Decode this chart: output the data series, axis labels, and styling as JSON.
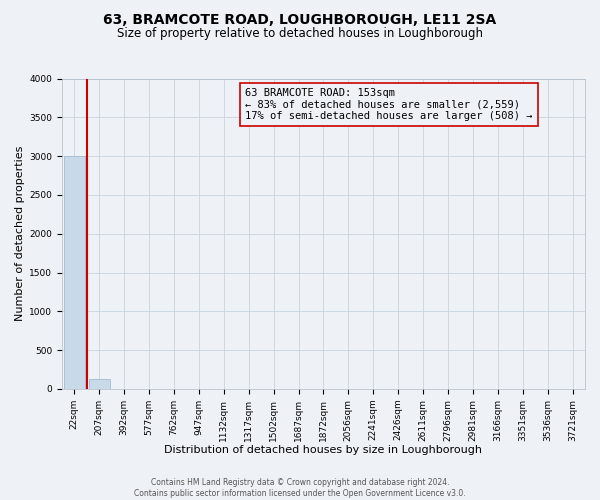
{
  "title": "63, BRAMCOTE ROAD, LOUGHBOROUGH, LE11 2SA",
  "subtitle": "Size of property relative to detached houses in Loughborough",
  "xlabel": "Distribution of detached houses by size in Loughborough",
  "ylabel": "Number of detached properties",
  "footer_line1": "Contains HM Land Registry data © Crown copyright and database right 2024.",
  "footer_line2": "Contains public sector information licensed under the Open Government Licence v3.0.",
  "annotation_line1": "63 BRAMCOTE ROAD: 153sqm",
  "annotation_line2": "← 83% of detached houses are smaller (2,559)",
  "annotation_line3": "17% of semi-detached houses are larger (508) →",
  "bar_categories": [
    "22sqm",
    "207sqm",
    "392sqm",
    "577sqm",
    "762sqm",
    "947sqm",
    "1132sqm",
    "1317sqm",
    "1502sqm",
    "1687sqm",
    "1872sqm",
    "2056sqm",
    "2241sqm",
    "2426sqm",
    "2611sqm",
    "2796sqm",
    "2981sqm",
    "3166sqm",
    "3351sqm",
    "3536sqm",
    "3721sqm"
  ],
  "bar_values": [
    3000,
    130,
    5,
    2,
    1,
    1,
    0,
    0,
    0,
    0,
    0,
    0,
    0,
    0,
    0,
    0,
    0,
    0,
    0,
    0,
    0
  ],
  "bar_color": "#c8d9ea",
  "bar_edge_color": "#9ab4cc",
  "property_line_color": "#cc0000",
  "annotation_box_edge_color": "#cc0000",
  "background_color": "#eef2f7",
  "ylim": [
    0,
    4000
  ],
  "yticks": [
    0,
    500,
    1000,
    1500,
    2000,
    2500,
    3000,
    3500,
    4000
  ],
  "grid_color": "#c8d4de",
  "title_fontsize": 10,
  "subtitle_fontsize": 8.5,
  "xlabel_fontsize": 8,
  "ylabel_fontsize": 8,
  "tick_fontsize": 6.5,
  "annotation_fontsize": 7.5,
  "footer_fontsize": 5.5
}
